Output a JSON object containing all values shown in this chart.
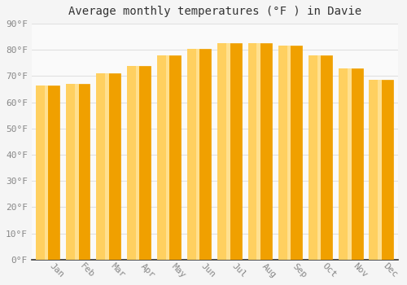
{
  "title": "Average monthly temperatures (°F ) in Davie",
  "months": [
    "Jan",
    "Feb",
    "Mar",
    "Apr",
    "May",
    "Jun",
    "Jul",
    "Aug",
    "Sep",
    "Oct",
    "Nov",
    "Dec"
  ],
  "values": [
    66.5,
    67.0,
    71.0,
    74.0,
    78.0,
    80.5,
    82.5,
    82.5,
    81.5,
    78.0,
    73.0,
    68.5
  ],
  "bar_color_center": "#FFD060",
  "bar_color_edge": "#F0A000",
  "background_color": "#F5F5F5",
  "plot_bg_color": "#FAFAFA",
  "grid_color": "#E0E0E0",
  "ylim": [
    0,
    90
  ],
  "yticks": [
    0,
    10,
    20,
    30,
    40,
    50,
    60,
    70,
    80,
    90
  ],
  "title_fontsize": 10,
  "tick_fontsize": 8,
  "tick_label_color": "#888888",
  "title_color": "#333333",
  "bar_width": 0.75
}
